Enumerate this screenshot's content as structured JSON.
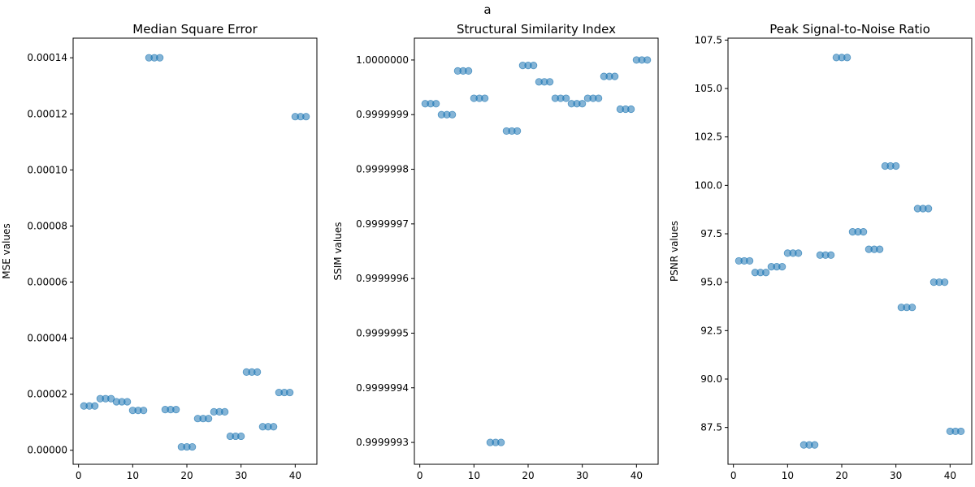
{
  "suptitle": "a",
  "chart_data": [
    {
      "type": "scatter",
      "title": "Median Square Error",
      "xlabel": "",
      "ylabel": "MSE values",
      "xlim": [
        -1,
        44
      ],
      "ylim": [
        -5e-06,
        0.000147
      ],
      "x_ticks": [
        0,
        10,
        20,
        30,
        40
      ],
      "x_tick_labels": [
        "0",
        "10",
        "20",
        "30",
        "40"
      ],
      "y_ticks": [
        0,
        2e-05,
        4e-05,
        6e-05,
        8e-05,
        0.0001,
        0.00012,
        0.00014
      ],
      "y_tick_labels": [
        "0.00000",
        "0.00002",
        "0.00004",
        "0.00006",
        "0.00008",
        "0.00010",
        "0.00012",
        "0.00014"
      ],
      "marker_color": "#1f77b4",
      "x": [
        1,
        2,
        3,
        4,
        5,
        6,
        7,
        8,
        9,
        10,
        11,
        12,
        13,
        14,
        15,
        16,
        17,
        18,
        19,
        20,
        21,
        22,
        23,
        24,
        25,
        26,
        27,
        28,
        29,
        30,
        31,
        32,
        33,
        34,
        35,
        36,
        37,
        38,
        39,
        40,
        41,
        42
      ],
      "y": [
        1.58e-05,
        1.58e-05,
        1.58e-05,
        1.84e-05,
        1.84e-05,
        1.84e-05,
        1.73e-05,
        1.73e-05,
        1.73e-05,
        1.42e-05,
        1.42e-05,
        1.42e-05,
        0.00014,
        0.00014,
        0.00014,
        1.45e-05,
        1.45e-05,
        1.45e-05,
        1.2e-06,
        1.2e-06,
        1.2e-06,
        1.13e-05,
        1.13e-05,
        1.13e-05,
        1.37e-05,
        1.37e-05,
        1.37e-05,
        5e-06,
        5e-06,
        5e-06,
        2.79e-05,
        2.79e-05,
        2.79e-05,
        8.4e-06,
        8.4e-06,
        8.4e-06,
        2.06e-05,
        2.06e-05,
        2.06e-05,
        0.000119,
        0.000119,
        0.000119
      ]
    },
    {
      "type": "scatter",
      "title": "Structural Similarity Index",
      "xlabel": "",
      "ylabel": "SSIM values",
      "xlim": [
        -1,
        44
      ],
      "ylim": [
        0.99999926,
        1.00000004
      ],
      "x_ticks": [
        0,
        10,
        20,
        30,
        40
      ],
      "x_tick_labels": [
        "0",
        "10",
        "20",
        "30",
        "40"
      ],
      "y_ticks": [
        0.9999993,
        0.9999994,
        0.9999995,
        0.9999996,
        0.9999997,
        0.9999998,
        0.9999999,
        1.0
      ],
      "y_tick_labels": [
        "0.9999993",
        "0.9999994",
        "0.9999995",
        "0.9999996",
        "0.9999997",
        "0.9999998",
        "0.9999999",
        "1.0000000"
      ],
      "marker_color": "#1f77b4",
      "x": [
        1,
        2,
        3,
        4,
        5,
        6,
        7,
        8,
        9,
        10,
        11,
        12,
        13,
        14,
        15,
        16,
        17,
        18,
        19,
        20,
        21,
        22,
        23,
        24,
        25,
        26,
        27,
        28,
        29,
        30,
        31,
        32,
        33,
        34,
        35,
        36,
        37,
        38,
        39,
        40,
        41,
        42
      ],
      "y": [
        0.99999992,
        0.99999992,
        0.99999992,
        0.9999999,
        0.9999999,
        0.9999999,
        0.99999998,
        0.99999998,
        0.99999998,
        0.99999993,
        0.99999993,
        0.99999993,
        0.9999993,
        0.9999993,
        0.9999993,
        0.99999987,
        0.99999987,
        0.99999987,
        0.99999999,
        0.99999999,
        0.99999999,
        0.99999996,
        0.99999996,
        0.99999996,
        0.99999993,
        0.99999993,
        0.99999993,
        0.99999992,
        0.99999992,
        0.99999992,
        0.99999993,
        0.99999993,
        0.99999993,
        0.99999997,
        0.99999997,
        0.99999997,
        0.99999991,
        0.99999991,
        0.99999991,
        1.0,
        1.0,
        1.0
      ]
    },
    {
      "type": "scatter",
      "title": "Peak Signal-to-Noise Ratio",
      "xlabel": "",
      "ylabel": "PSNR values",
      "xlim": [
        -1,
        44
      ],
      "ylim": [
        85.6,
        107.6
      ],
      "x_ticks": [
        0,
        10,
        20,
        30,
        40
      ],
      "x_tick_labels": [
        "0",
        "10",
        "20",
        "30",
        "40"
      ],
      "y_ticks": [
        87.5,
        90.0,
        92.5,
        95.0,
        97.5,
        100.0,
        102.5,
        105.0,
        107.5
      ],
      "y_tick_labels": [
        "87.5",
        "90.0",
        "92.5",
        "95.0",
        "97.5",
        "100.0",
        "102.5",
        "105.0",
        "107.5"
      ],
      "marker_color": "#1f77b4",
      "x": [
        1,
        2,
        3,
        4,
        5,
        6,
        7,
        8,
        9,
        10,
        11,
        12,
        13,
        14,
        15,
        16,
        17,
        18,
        19,
        20,
        21,
        22,
        23,
        24,
        25,
        26,
        27,
        28,
        29,
        30,
        31,
        32,
        33,
        34,
        35,
        36,
        37,
        38,
        39,
        40,
        41,
        42
      ],
      "y": [
        96.1,
        96.1,
        96.1,
        95.5,
        95.5,
        95.5,
        95.8,
        95.8,
        95.8,
        96.5,
        96.5,
        96.5,
        86.6,
        86.6,
        86.6,
        96.4,
        96.4,
        96.4,
        106.6,
        106.6,
        106.6,
        97.6,
        97.6,
        97.6,
        96.7,
        96.7,
        96.7,
        101.0,
        101.0,
        101.0,
        93.7,
        93.7,
        93.7,
        98.8,
        98.8,
        98.8,
        95.0,
        95.0,
        95.0,
        87.3,
        87.3,
        87.3
      ]
    }
  ]
}
